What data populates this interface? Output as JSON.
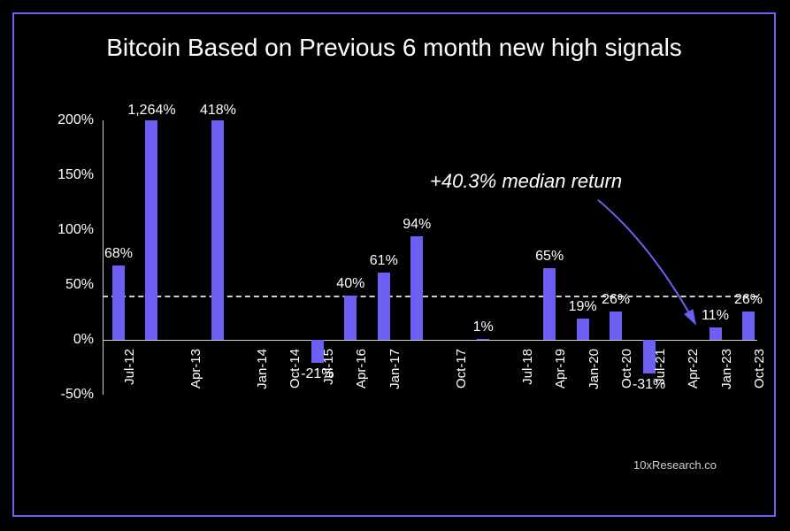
{
  "title": "Bitcoin Based on Previous 6 month new high signals",
  "chart": {
    "type": "bar",
    "background_color": "#000000",
    "border_color": "#6d5ff3",
    "bar_color": "#6d5ff3",
    "axis_color": "#cfcfcf",
    "text_color": "#ffffff",
    "title_fontsize": 28,
    "value_fontsize": 16,
    "axis_fontsize": 16,
    "xlabel_fontsize": 15,
    "ylim_min": -50,
    "ylim_max": 200,
    "ytick_step": 50,
    "yticks": [
      "-50%",
      "0%",
      "50%",
      "100%",
      "150%",
      "200%"
    ],
    "median_value": 40.3,
    "median_label": "+40.3% median return",
    "watermark": "10xResearch.co",
    "bars": [
      {
        "label": "Jul-12",
        "value": 68,
        "value_label": "68%"
      },
      {
        "label": "",
        "value": 1264,
        "value_label": "1,264%",
        "capped": true
      },
      {
        "label": "Apr-13",
        "value": null,
        "value_label": ""
      },
      {
        "label": "",
        "value": 418,
        "value_label": "418%",
        "capped": true
      },
      {
        "label": "Jan-14",
        "value": null,
        "value_label": ""
      },
      {
        "label": "Oct-14",
        "value": null,
        "value_label": ""
      },
      {
        "label": "Jul-15",
        "value": -21,
        "value_label": "-21%"
      },
      {
        "label": "Apr-16",
        "value": 40,
        "value_label": "40%"
      },
      {
        "label": "Jan-17",
        "value": 61,
        "value_label": "61%"
      },
      {
        "label": "",
        "value": 94,
        "value_label": "94%"
      },
      {
        "label": "Oct-17",
        "value": null,
        "value_label": ""
      },
      {
        "label": "",
        "value": 1,
        "value_label": "1%"
      },
      {
        "label": "Jul-18",
        "value": null,
        "value_label": ""
      },
      {
        "label": "Apr-19",
        "value": 65,
        "value_label": "65%"
      },
      {
        "label": "Jan-20",
        "value": 19,
        "value_label": "19%"
      },
      {
        "label": "Oct-20",
        "value": 26,
        "value_label": "26%"
      },
      {
        "label": "Jul-21",
        "value": -31,
        "value_label": "-31%"
      },
      {
        "label": "Apr-22",
        "value": null,
        "value_label": ""
      },
      {
        "label": "Jan-23",
        "value": 11,
        "value_label": "11%"
      },
      {
        "label": "Oct-23",
        "value": 26,
        "value_label": "26%"
      }
    ]
  }
}
